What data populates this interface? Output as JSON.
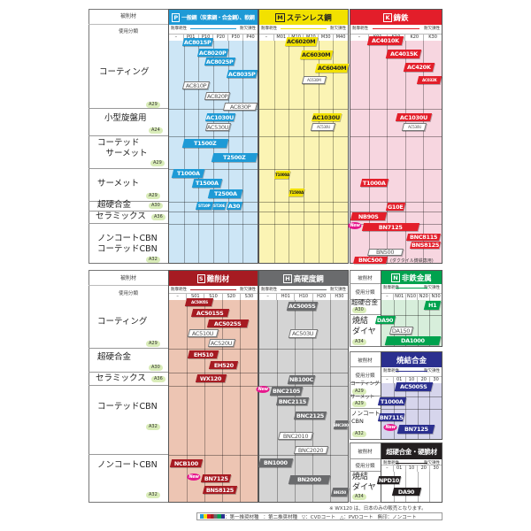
{
  "common": {
    "material_label": "被削材",
    "class_label": "使用分類",
    "wear": "耐摩耗性",
    "tough": "耐欠損性",
    "new_badge": "New"
  },
  "top": {
    "rows": [
      {
        "label": "コーティング",
        "ref": "A29"
      },
      {
        "label": "小型旋盤用",
        "ref": "A24"
      },
      {
        "label": "コーテッド\n　サーメット",
        "ref": "A29"
      },
      {
        "label": "サーメット",
        "ref": "A29"
      },
      {
        "label": "超硬合金",
        "ref": "A30"
      },
      {
        "label": "セラミックス",
        "ref": "A36"
      },
      {
        "label": "ノンコートCBN\nコーテッドCBN",
        "ref": "A32"
      }
    ],
    "P": {
      "letter": "P",
      "title": "一般鋼（炭素鋼・合金鋼）、軟鋼",
      "codes": [
        "–",
        "P01",
        "P10",
        "P20",
        "P30",
        "P40"
      ],
      "chips": [
        {
          "label": "AC8015P",
          "style": "fill"
        },
        {
          "label": "AC8020P",
          "style": "fill"
        },
        {
          "label": "AC8025P",
          "style": "fill"
        },
        {
          "label": "AC8035P",
          "style": "fill"
        },
        {
          "label": "AC810P",
          "style": "outline"
        },
        {
          "label": "AC820P",
          "style": "outline"
        },
        {
          "label": "AC830P",
          "style": "outline"
        },
        {
          "label": "AC1030U",
          "style": "fill"
        },
        {
          "label": "AC530U",
          "style": "outline"
        },
        {
          "label": "T1500Z",
          "style": "fill"
        },
        {
          "label": "T2500Z",
          "style": "fill"
        },
        {
          "label": "T1000A",
          "style": "fill"
        },
        {
          "label": "T1500A",
          "style": "fill"
        },
        {
          "label": "T2500A",
          "style": "fill"
        },
        {
          "label": "ST10P",
          "style": "fill"
        },
        {
          "label": "ST20E",
          "style": "fill"
        },
        {
          "label": "A30",
          "style": "fill"
        }
      ]
    },
    "M": {
      "letter": "M",
      "title": "ステンレス鋼",
      "codes": [
        "–",
        "M01",
        "M10",
        "M20",
        "M30",
        "M40"
      ],
      "chips": [
        {
          "label": "AC6020M",
          "style": "fill"
        },
        {
          "label": "AC6030M",
          "style": "fill"
        },
        {
          "label": "AC6040M",
          "style": "fill"
        },
        {
          "label": "AC630M",
          "style": "outline"
        },
        {
          "label": "AC1030U",
          "style": "fill"
        },
        {
          "label": "AC530U",
          "style": "outline"
        },
        {
          "label": "T1000A",
          "style": "fill"
        },
        {
          "label": "T1500A",
          "style": "fill"
        }
      ]
    },
    "K": {
      "letter": "K",
      "title": "鋳鉄",
      "codes": [
        "–",
        "K01",
        "K10",
        "K20",
        "K30"
      ],
      "note": "(ダクタイル鋳鉄専用)",
      "chips": [
        {
          "label": "AC4010K",
          "style": "fill"
        },
        {
          "label": "AC4015K",
          "style": "fill"
        },
        {
          "label": "AC420K",
          "style": "fill"
        },
        {
          "label": "AC032K",
          "style": "fill"
        },
        {
          "label": "AC1030U",
          "style": "fill"
        },
        {
          "label": "AC530U",
          "style": "outline"
        },
        {
          "label": "T1000A",
          "style": "fill"
        },
        {
          "label": "G10E",
          "style": "fill"
        },
        {
          "label": "NB90S",
          "style": "fill"
        },
        {
          "label": "BN7125",
          "style": "fill",
          "new": true
        },
        {
          "label": "BNC8115",
          "style": "fill"
        },
        {
          "label": "BNS8125",
          "style": "fill"
        },
        {
          "label": "BN500",
          "style": "outline"
        },
        {
          "label": "BNC500",
          "style": "fill"
        }
      ]
    }
  },
  "bottom": {
    "rows": [
      {
        "label": "コーティング",
        "ref": "A29"
      },
      {
        "label": "超硬合金",
        "ref": "A30"
      },
      {
        "label": "セラミックス",
        "ref": "A36"
      },
      {
        "label": "コーテッドCBN",
        "ref": "A32"
      },
      {
        "label": "ノンコートCBN",
        "ref": "A32"
      }
    ],
    "S": {
      "letter": "S",
      "title": "難削材",
      "codes": [
        "–",
        "S01",
        "S10",
        "S20",
        "S30"
      ],
      "chips": [
        {
          "label": "AC5005S",
          "style": "fill"
        },
        {
          "label": "AC5015S",
          "style": "fill"
        },
        {
          "label": "AC5025S",
          "style": "fill"
        },
        {
          "label": "AC510U",
          "style": "outline"
        },
        {
          "label": "AC520U",
          "style": "outline"
        },
        {
          "label": "EH510",
          "style": "fill"
        },
        {
          "label": "EH520",
          "style": "fill"
        },
        {
          "label": "WX120",
          "style": "fill"
        },
        {
          "label": "NCB100",
          "style": "fill"
        },
        {
          "label": "BN7125",
          "style": "fill",
          "new": true
        },
        {
          "label": "BNS8125",
          "style": "fill"
        }
      ]
    },
    "H": {
      "letter": "H",
      "title": "高硬度鋼",
      "codes": [
        "–",
        "H01",
        "H10",
        "H20",
        "H30"
      ],
      "chips": [
        {
          "label": "AC5005S",
          "style": "fill"
        },
        {
          "label": "AC503U",
          "style": "outline"
        },
        {
          "label": "NB100C",
          "style": "fill"
        },
        {
          "label": "BNC2105",
          "style": "fill",
          "new": true
        },
        {
          "label": "BNC2115",
          "style": "fill"
        },
        {
          "label": "BNC2125",
          "style": "fill"
        },
        {
          "label": "BNC300",
          "style": "fill"
        },
        {
          "label": "BNC2010",
          "style": "outline"
        },
        {
          "label": "BNC2020",
          "style": "outline"
        },
        {
          "label": "BN1000",
          "style": "fill"
        },
        {
          "label": "BN2000",
          "style": "fill"
        },
        {
          "label": "BN350",
          "style": "fill"
        }
      ]
    },
    "N": {
      "letter": "N",
      "title": "非鉄金属",
      "codes": [
        "–",
        "N01",
        "N10",
        "N20",
        "N30"
      ],
      "rows": [
        {
          "label": "超硬合金",
          "ref": "A30"
        },
        {
          "label": "焼結\nダイヤ",
          "ref": "A34"
        }
      ],
      "chips": [
        {
          "label": "H1",
          "style": "fill"
        },
        {
          "label": "DA90",
          "style": "fill"
        },
        {
          "label": "DA150",
          "style": "outline"
        },
        {
          "label": "DA1000",
          "style": "fill"
        }
      ]
    },
    "G": {
      "title": "焼結合金",
      "codes": [
        "–",
        "01",
        "10",
        "20",
        "30"
      ],
      "rows": [
        {
          "label": "コーティング",
          "ref": "A29"
        },
        {
          "label": "サーメット",
          "ref": "A29"
        },
        {
          "label": "ノンコート\nCBN",
          "ref": "A32"
        }
      ],
      "chips": [
        {
          "label": "AC5005S",
          "style": "fill"
        },
        {
          "label": "T1000A",
          "style": "fill"
        },
        {
          "label": "BN7115",
          "style": "fill"
        },
        {
          "label": "BN7125",
          "style": "fill",
          "new": true
        }
      ]
    },
    "B": {
      "title": "超硬合金・硬脆材",
      "codes": [
        "–",
        "01",
        "10",
        "20",
        "30"
      ],
      "rows": [
        {
          "label": "焼結\nダイヤ",
          "ref": "A34"
        }
      ],
      "chips": [
        {
          "label": "NPD10",
          "style": "fill"
        },
        {
          "label": "DA90",
          "style": "fill"
        }
      ]
    }
  },
  "footnote": "※ WX120 は、日本のみの販売となります。",
  "legend": {
    "first": "：第一推奨材種",
    "second": "：第二推奨材種",
    "cvd": "▽：CVDコート",
    "pvd": "△：PVDコート",
    "none": "無印：ノンコート"
  }
}
